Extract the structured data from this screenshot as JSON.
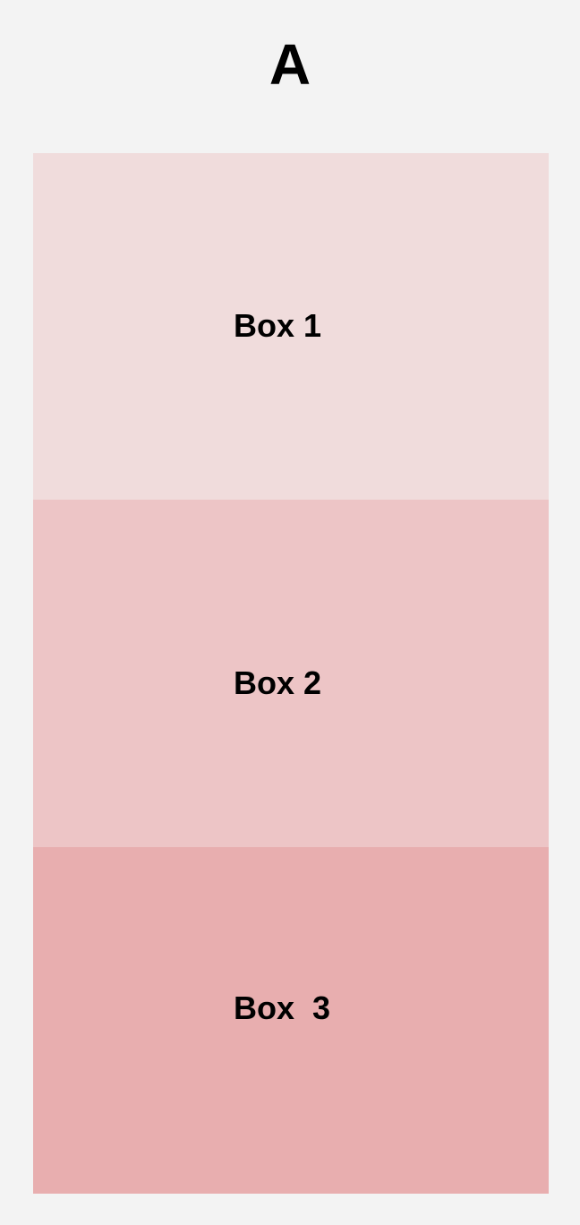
{
  "heading": "A",
  "boxes": [
    {
      "label": "Box 1",
      "color": "#f0dcdc"
    },
    {
      "label": "Box 2",
      "color": "#edc5c6"
    },
    {
      "label": "Box  3",
      "color": "#e8aeaf"
    }
  ]
}
